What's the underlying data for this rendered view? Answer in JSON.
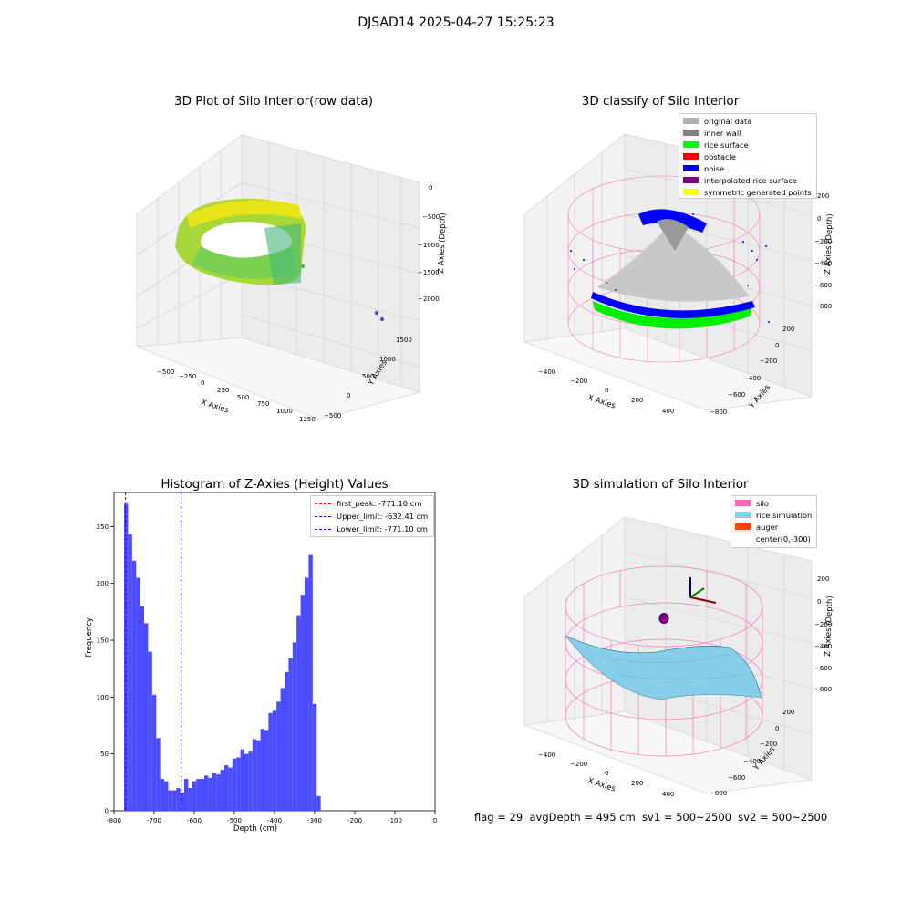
{
  "figure": {
    "suptitle": "DJSAD14 2025-04-27 15:25:23",
    "footer": "flag = 29  avgDepth = 495 cm  sv1 = 500~2500  sv2 = 500~2500"
  },
  "chart_data": [
    {
      "type": "scatter",
      "projection": "3d",
      "title": "3D Plot of Silo Interior(row data)",
      "xlabel": "X Axies",
      "ylabel": "Y Axies",
      "zlabel": "Z Axies (Depth)",
      "xticks": [
        "−500",
        "−250",
        "0",
        "250",
        "500",
        "750",
        "1000",
        "1250"
      ],
      "yticks": [
        "−500",
        "0",
        "500",
        "1000",
        "1500"
      ],
      "zticks": [
        "0",
        "−500",
        "−1000",
        "−1500",
        "−2000"
      ],
      "colormap": "viridis",
      "description_points": "dense ring of points forming silo wall with yellow-green colormap, a few outlier points near x≈1250, y≈1500"
    },
    {
      "type": "scatter",
      "projection": "3d",
      "title": "3D classify of Silo Interior",
      "xlabel": "X Axies",
      "ylabel": "Y Axies",
      "zlabel": "Z Axies (Depth)",
      "xticks": [
        "−400",
        "−200",
        "0",
        "200",
        "400"
      ],
      "yticks": [
        "200",
        "0",
        "−200",
        "−400",
        "−600",
        "−800"
      ],
      "zticks": [
        "200",
        "0",
        "−200",
        "−400",
        "−600",
        "−800"
      ],
      "legend_position": "upper right",
      "legend": [
        {
          "label": "original data",
          "color": "#b0b0b0"
        },
        {
          "label": "inner wall",
          "color": "#808080"
        },
        {
          "label": "rice surface",
          "color": "#00ff00"
        },
        {
          "label": "obstacle",
          "color": "#ff0000"
        },
        {
          "label": "noise",
          "color": "#0000ff"
        },
        {
          "label": "interpolated rice surface",
          "color": "#800080"
        },
        {
          "label": "symmetric generated points",
          "color": "#ffff00"
        }
      ],
      "silo_wire_color": "#ff69b4"
    },
    {
      "type": "bar",
      "title": "Histogram of Z-Axies (Height) Values",
      "xlabel": "Depth (cm)",
      "ylabel": "Frequency",
      "xlim": [
        -800,
        0
      ],
      "ylim": [
        0,
        280
      ],
      "xticks": [
        -800,
        -700,
        -600,
        -500,
        -400,
        -300,
        -200,
        -100,
        0
      ],
      "yticks": [
        0,
        50,
        100,
        150,
        200,
        250
      ],
      "bin_width": 10,
      "bin_start": -775,
      "bar_color": "#4b4bff",
      "values": [
        270,
        243,
        220,
        205,
        180,
        165,
        140,
        102,
        64,
        28,
        26,
        18,
        18,
        20,
        16,
        28,
        20,
        26,
        28,
        28,
        31,
        29,
        33,
        32,
        36,
        40,
        38,
        46,
        47,
        54,
        50,
        52,
        63,
        62,
        72,
        71,
        86,
        88,
        96,
        108,
        122,
        134,
        148,
        172,
        190,
        205,
        225,
        94,
        13
      ],
      "vlines": [
        {
          "label": "first_peak: -771.10 cm",
          "x": -771.1,
          "color": "#ff0000"
        },
        {
          "label": "Upper_limit: -632.41 cm",
          "x": -632.41,
          "color": "#0000ff"
        },
        {
          "label": "Lower_limit: -771.10 cm",
          "x": -771.1,
          "color": "#0000ff"
        }
      ],
      "legend_position": "upper right"
    },
    {
      "type": "surface",
      "projection": "3d",
      "title": "3D simulation of Silo Interior",
      "xlabel": "X Axies",
      "ylabel": "Y Axies",
      "zlabel": "Z Axies (Depth)",
      "xticks": [
        "−400",
        "−200",
        "0",
        "200",
        "400"
      ],
      "yticks": [
        "200",
        "0",
        "−200",
        "−400",
        "−600",
        "−800"
      ],
      "zticks": [
        "200",
        "0",
        "−200",
        "−400",
        "−600",
        "−800"
      ],
      "legend_position": "upper right",
      "legend": [
        {
          "label": "silo",
          "color": "#ff69b4"
        },
        {
          "label": "rice simulation",
          "color": "#87ceeb"
        },
        {
          "label": "auger",
          "color": "#ff4500"
        },
        {
          "label": "center(0,-300)",
          "color": "#ffffff"
        }
      ]
    }
  ]
}
